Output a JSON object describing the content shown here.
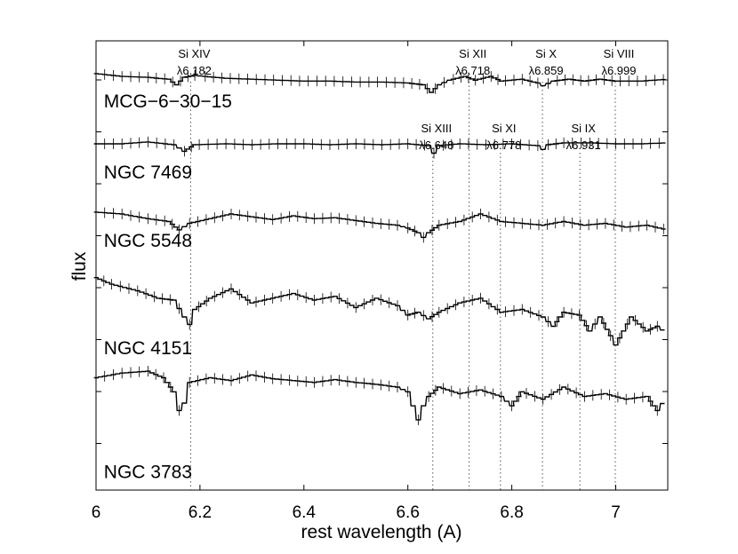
{
  "chart_data": {
    "type": "line",
    "title": "",
    "xlabel": "rest wavelength (A)",
    "ylabel": "flux",
    "xlim": [
      6.0,
      7.1
    ],
    "xticks": [
      6.0,
      6.2,
      6.4,
      6.6,
      6.8,
      7.0
    ],
    "xtick_labels": [
      "6",
      "6.2",
      "6.4",
      "6.6",
      "6.8",
      "7"
    ],
    "y_units": "relative flux (spectra vertically offset, no numeric y scale shown)",
    "lines": [
      {
        "ion": "Si XIV",
        "rest_wavelength": 6.182,
        "label": "λ6.182",
        "label_row": "top"
      },
      {
        "ion": "Si XIII",
        "rest_wavelength": 6.648,
        "label": "λ6.648",
        "label_row": "lower"
      },
      {
        "ion": "Si XII",
        "rest_wavelength": 6.718,
        "label": "λ6.718",
        "label_row": "top"
      },
      {
        "ion": "Si XI",
        "rest_wavelength": 6.778,
        "label": "λ6.778",
        "label_row": "lower"
      },
      {
        "ion": "Si X",
        "rest_wavelength": 6.859,
        "label": "λ6.859",
        "label_row": "top"
      },
      {
        "ion": "Si IX",
        "rest_wavelength": 6.931,
        "label": "λ6.931",
        "label_row": "lower"
      },
      {
        "ion": "Si VIII",
        "rest_wavelength": 6.999,
        "label": "λ6.999",
        "label_row": "top"
      }
    ],
    "series": [
      {
        "name": "MCG-6-30-15",
        "x": [
          6.0,
          6.05,
          6.1,
          6.14,
          6.155,
          6.17,
          6.19,
          6.21,
          6.25,
          6.3,
          6.35,
          6.4,
          6.45,
          6.5,
          6.55,
          6.6,
          6.63,
          6.645,
          6.66,
          6.68,
          6.71,
          6.73,
          6.76,
          6.78,
          6.82,
          6.85,
          6.86,
          6.88,
          6.91,
          6.94,
          6.97,
          7.0,
          7.05,
          7.1
        ],
        "values": [
          0.0,
          -0.03,
          -0.04,
          -0.06,
          -0.12,
          -0.04,
          -0.02,
          -0.03,
          -0.05,
          -0.06,
          -0.07,
          -0.08,
          -0.08,
          -0.09,
          -0.09,
          -0.1,
          -0.12,
          -0.2,
          -0.12,
          -0.07,
          -0.03,
          -0.07,
          -0.03,
          -0.08,
          -0.06,
          -0.1,
          -0.13,
          -0.08,
          -0.06,
          -0.08,
          -0.06,
          -0.08,
          -0.08,
          -0.06
        ]
      },
      {
        "name": "NGC 7469",
        "x": [
          6.0,
          6.05,
          6.1,
          6.15,
          6.17,
          6.19,
          6.25,
          6.3,
          6.35,
          6.4,
          6.45,
          6.5,
          6.55,
          6.6,
          6.64,
          6.65,
          6.66,
          6.7,
          6.75,
          6.8,
          6.85,
          6.86,
          6.87,
          6.9,
          6.95,
          7.0,
          7.05,
          7.1
        ],
        "values": [
          -0.75,
          -0.75,
          -0.73,
          -0.76,
          -0.83,
          -0.76,
          -0.75,
          -0.76,
          -0.75,
          -0.75,
          -0.76,
          -0.75,
          -0.76,
          -0.75,
          -0.77,
          -0.85,
          -0.77,
          -0.75,
          -0.76,
          -0.75,
          -0.77,
          -0.81,
          -0.76,
          -0.74,
          -0.74,
          -0.75,
          -0.75,
          -0.74
        ]
      },
      {
        "name": "NGC 5548",
        "x": [
          6.0,
          6.05,
          6.1,
          6.14,
          6.16,
          6.18,
          6.22,
          6.26,
          6.3,
          6.34,
          6.38,
          6.42,
          6.46,
          6.5,
          6.54,
          6.58,
          6.6,
          6.62,
          6.63,
          6.64,
          6.66,
          6.7,
          6.74,
          6.78,
          6.82,
          6.86,
          6.9,
          6.94,
          6.98,
          7.02,
          7.06,
          7.1
        ],
        "values": [
          -1.48,
          -1.5,
          -1.55,
          -1.58,
          -1.67,
          -1.6,
          -1.55,
          -1.5,
          -1.53,
          -1.56,
          -1.52,
          -1.55,
          -1.54,
          -1.57,
          -1.6,
          -1.62,
          -1.65,
          -1.7,
          -1.75,
          -1.7,
          -1.62,
          -1.58,
          -1.5,
          -1.58,
          -1.6,
          -1.62,
          -1.58,
          -1.62,
          -1.6,
          -1.64,
          -1.62,
          -1.67
        ]
      },
      {
        "name": "NGC 4151",
        "x": [
          6.0,
          6.03,
          6.08,
          6.12,
          6.15,
          6.17,
          6.18,
          6.19,
          6.22,
          6.26,
          6.3,
          6.34,
          6.38,
          6.42,
          6.46,
          6.5,
          6.54,
          6.58,
          6.6,
          6.62,
          6.64,
          6.66,
          6.7,
          6.74,
          6.78,
          6.82,
          6.86,
          6.88,
          6.9,
          6.93,
          6.95,
          6.97,
          6.99,
          7.0,
          7.03,
          7.06,
          7.08,
          7.1
        ],
        "values": [
          -2.18,
          -2.25,
          -2.32,
          -2.4,
          -2.42,
          -2.6,
          -2.68,
          -2.52,
          -2.4,
          -2.3,
          -2.45,
          -2.4,
          -2.35,
          -2.42,
          -2.38,
          -2.5,
          -2.4,
          -2.48,
          -2.58,
          -2.55,
          -2.62,
          -2.55,
          -2.45,
          -2.4,
          -2.55,
          -2.52,
          -2.6,
          -2.7,
          -2.55,
          -2.58,
          -2.75,
          -2.6,
          -2.8,
          -2.9,
          -2.6,
          -2.75,
          -2.7,
          -2.78
        ]
      },
      {
        "name": "NGC 3783",
        "x": [
          6.0,
          6.05,
          6.1,
          6.13,
          6.15,
          6.16,
          6.17,
          6.18,
          6.22,
          6.26,
          6.3,
          6.34,
          6.38,
          6.42,
          6.46,
          6.5,
          6.54,
          6.58,
          6.6,
          6.61,
          6.62,
          6.63,
          6.64,
          6.66,
          6.7,
          6.74,
          6.78,
          6.8,
          6.82,
          6.86,
          6.9,
          6.94,
          6.98,
          7.02,
          7.06,
          7.08,
          7.1
        ],
        "values": [
          -3.25,
          -3.2,
          -3.18,
          -3.25,
          -3.4,
          -3.6,
          -3.52,
          -3.3,
          -3.25,
          -3.28,
          -3.22,
          -3.26,
          -3.28,
          -3.3,
          -3.27,
          -3.3,
          -3.32,
          -3.35,
          -3.4,
          -3.55,
          -3.7,
          -3.55,
          -3.45,
          -3.35,
          -3.42,
          -3.38,
          -3.45,
          -3.55,
          -3.4,
          -3.48,
          -3.35,
          -3.45,
          -3.42,
          -3.48,
          -3.45,
          -3.6,
          -3.45
        ]
      }
    ],
    "spectrum_labels": [
      {
        "text": "MCG−6−30−15",
        "x": 6.015,
        "y": -0.36
      },
      {
        "text": "NGC 7469",
        "x": 6.015,
        "y": -1.12
      },
      {
        "text": "NGC 5548",
        "x": 6.015,
        "y": -1.85
      },
      {
        "text": "NGC 4151",
        "x": 6.015,
        "y": -3.0
      },
      {
        "text": "NGC 3783",
        "x": 6.015,
        "y": -4.32
      }
    ]
  }
}
